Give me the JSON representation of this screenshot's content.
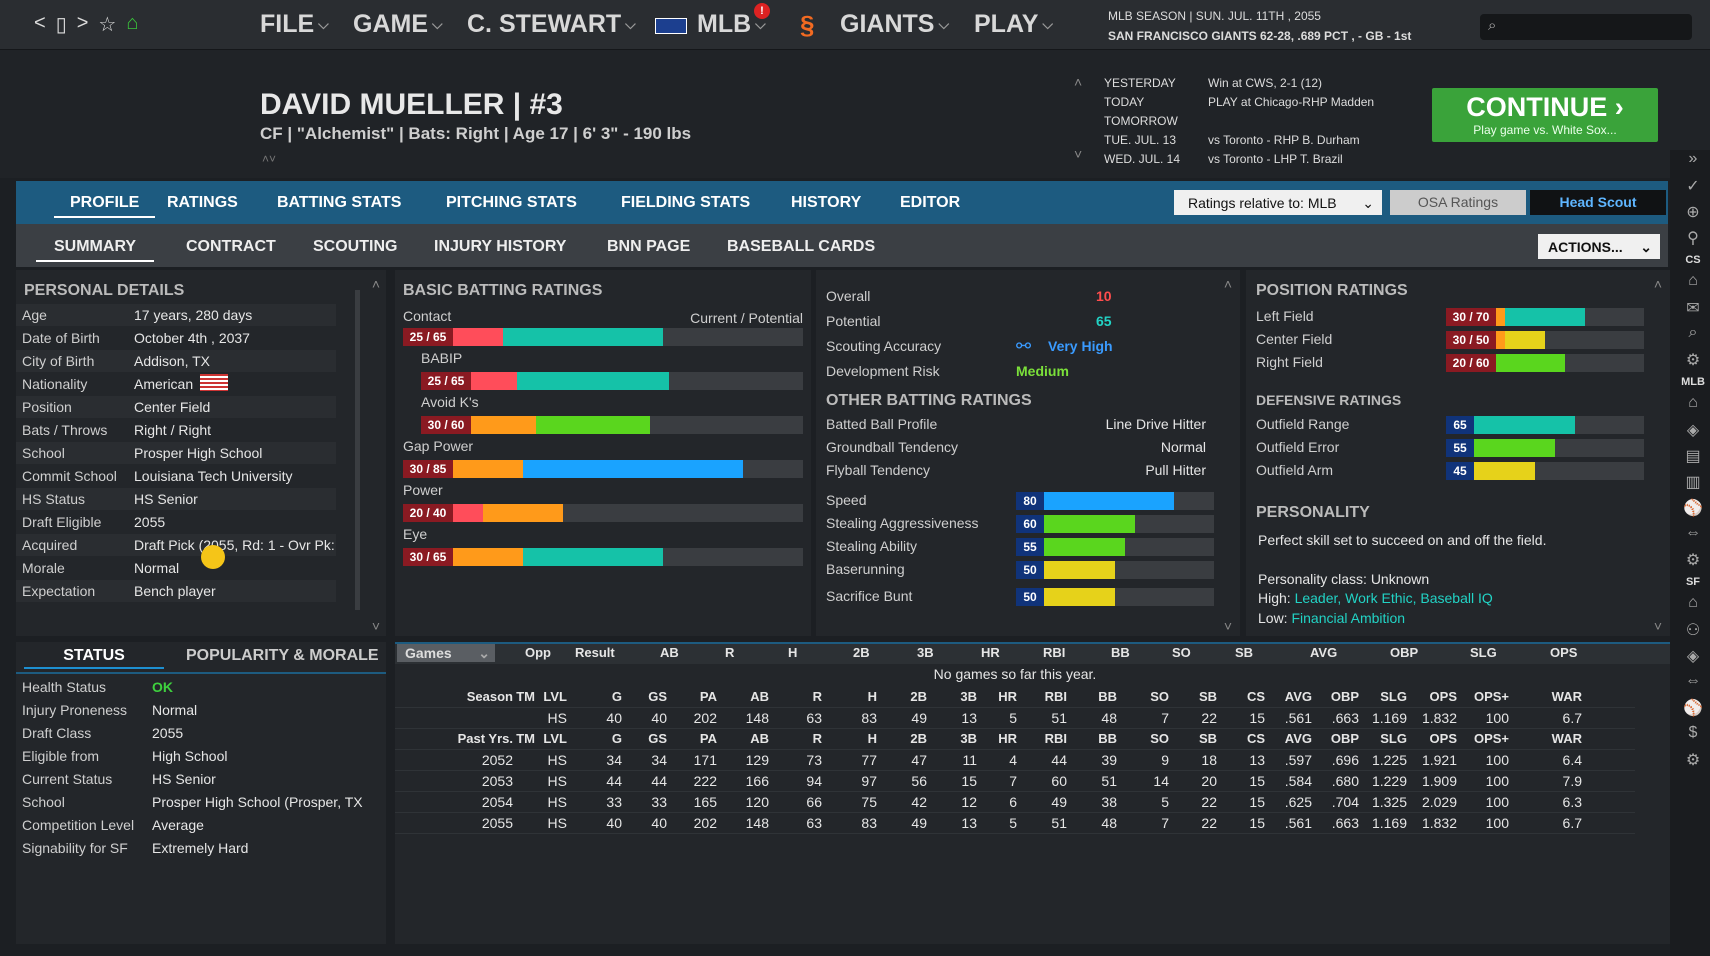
{
  "nav": {
    "back": "<",
    "forward": ">",
    "window": "▯",
    "star": "☆",
    "home": "⌂"
  },
  "menu": [
    "FILE",
    "GAME",
    "C. STEWART",
    "MLB",
    "GIANTS",
    "PLAY"
  ],
  "alert_badge": "!",
  "season": {
    "line1": "MLB SEASON  |  SUN. JUL. 11TH , 2055",
    "line2": "SAN FRANCISCO GIANTS  62-28, .689 PCT , - GB - 1st"
  },
  "player": {
    "name": "DAVID MUELLER  |  #3",
    "info": "CF | \"Alchemist\" | Bats: Right  |  Age 17  |  6' 3\"  - 190 lbs"
  },
  "schedule": [
    {
      "day": "YESTERDAY",
      "game": "Win at CWS, 2-1 (12)"
    },
    {
      "day": "TODAY",
      "game": "PLAY at Chicago-RHP Madden"
    },
    {
      "day": "TOMORROW",
      "game": ""
    },
    {
      "day": "TUE. JUL. 13",
      "game": "vs Toronto - RHP B. Durham"
    },
    {
      "day": "WED. JUL. 14",
      "game": "vs Toronto - LHP T. Brazil"
    }
  ],
  "continue": {
    "label": "CONTINUE",
    "sub": "Play game vs. White Sox..."
  },
  "tabs1": [
    "PROFILE",
    "RATINGS",
    "BATTING STATS",
    "PITCHING STATS",
    "FIELDING STATS",
    "HISTORY",
    "EDITOR"
  ],
  "ratings_relative": "Ratings relative to: MLB",
  "osa": "OSA Ratings",
  "head_scout": "Head Scout",
  "tabs2": [
    "SUMMARY",
    "CONTRACT",
    "SCOUTING",
    "INJURY HISTORY",
    "BNN PAGE",
    "BASEBALL CARDS"
  ],
  "actions": "ACTIONS...",
  "personal": {
    "title": "PERSONAL DETAILS",
    "rows": [
      [
        "Age",
        "17 years, 280 days"
      ],
      [
        "Date of Birth",
        "October 4th , 2037"
      ],
      [
        "City of Birth",
        "Addison, TX"
      ],
      [
        "Nationality",
        "American"
      ],
      [
        "Position",
        "Center Field"
      ],
      [
        "Bats / Throws",
        "Right / Right"
      ],
      [
        "School",
        "Prosper High School"
      ],
      [
        "Commit School",
        "Louisiana Tech University"
      ],
      [
        "HS Status",
        "HS Senior"
      ],
      [
        "Draft Eligible",
        "2055"
      ],
      [
        "Acquired",
        "Draft Pick (2055, Rd: 1 - Ovr Pk:"
      ],
      [
        "Morale",
        "Normal"
      ],
      [
        "Expectation",
        "Bench player"
      ]
    ]
  },
  "status": {
    "tab1": "STATUS",
    "tab2": "POPULARITY & MORALE",
    "rows": [
      [
        "Health Status",
        "OK"
      ],
      [
        "Injury Proneness",
        "Normal"
      ],
      [
        "Draft Class",
        "2055"
      ],
      [
        "Eligible from",
        "High School"
      ],
      [
        "Current Status",
        "HS Senior"
      ],
      [
        "School",
        "Prosper High School (Prosper, TX"
      ],
      [
        "Competition Level",
        "Average"
      ],
      [
        "Signability for SF",
        "Extremely Hard"
      ]
    ]
  },
  "batting": {
    "title": "BASIC BATTING RATINGS",
    "cp": "Current / Potential",
    "items": [
      {
        "name": "Contact",
        "label": "25 / 65",
        "cur": 25,
        "pot": 65
      },
      {
        "name": "BABIP",
        "label": "25 / 65",
        "cur": 25,
        "pot": 65
      },
      {
        "name": "Avoid K's",
        "label": "30 / 60",
        "cur": 30,
        "pot": 60
      },
      {
        "name": "Gap Power",
        "label": "30 / 85",
        "cur": 30,
        "pot": 85
      },
      {
        "name": "Power",
        "label": "20 / 40",
        "cur": 20,
        "pot": 40
      },
      {
        "name": "Eye",
        "label": "30 / 65",
        "cur": 30,
        "pot": 65
      }
    ]
  },
  "overall": {
    "rows": [
      [
        "Overall",
        "10"
      ],
      [
        "Potential",
        "65"
      ],
      [
        "Scouting Accuracy",
        "Very High"
      ],
      [
        "Development Risk",
        "Medium"
      ]
    ],
    "other_title": "OTHER BATTING RATINGS",
    "other": [
      [
        "Batted Ball Profile",
        "Line Drive Hitter"
      ],
      [
        "Groundball Tendency",
        "Normal"
      ],
      [
        "Flyball Tendency",
        "Pull Hitter"
      ]
    ],
    "running": [
      {
        "name": "Speed",
        "value": 80
      },
      {
        "name": "Stealing Aggressiveness",
        "value": 60
      },
      {
        "name": "Stealing Ability",
        "value": 55
      },
      {
        "name": "Baserunning",
        "value": 50
      },
      {
        "name": "Sacrifice Bunt",
        "value": 50
      }
    ]
  },
  "position": {
    "title": "POSITION RATINGS",
    "items": [
      {
        "name": "Left Field",
        "label": "30 / 70",
        "cur": 30,
        "pot": 70
      },
      {
        "name": "Center Field",
        "label": "30 / 50",
        "cur": 30,
        "pot": 50
      },
      {
        "name": "Right Field",
        "label": "20 / 60",
        "cur": 20,
        "pot": 60
      }
    ],
    "def_title": "DEFENSIVE RATINGS",
    "def": [
      {
        "name": "Outfield Range",
        "value": 65
      },
      {
        "name": "Outfield Error",
        "value": 55
      },
      {
        "name": "Outfield Arm",
        "value": 45
      }
    ],
    "pers_title": "PERSONALITY",
    "pers_text": "Perfect skill set to succeed on and off the field.",
    "pers_class": "Personality class: Unknown",
    "high_label": "High:",
    "high": "Leader, Work Ethic, Baseball IQ",
    "low_label": "Low:",
    "low": "Financial Ambition"
  },
  "games": {
    "select": "Games",
    "headers": [
      "Opp",
      "Result",
      "AB",
      "R",
      "H",
      "2B",
      "3B",
      "HR",
      "RBI",
      "BB",
      "SO",
      "SB",
      "AVG",
      "OBP",
      "SLG",
      "OPS"
    ],
    "empty": "No games so far this year."
  },
  "season_stats": {
    "headers": [
      "Season",
      "TM",
      "LVL",
      "G",
      "GS",
      "PA",
      "AB",
      "R",
      "H",
      "2B",
      "3B",
      "HR",
      "RBI",
      "BB",
      "SO",
      "SB",
      "CS",
      "AVG",
      "OBP",
      "SLG",
      "OPS",
      "OPS+",
      "WAR"
    ],
    "rows": [
      [
        "",
        "",
        "HS",
        "40",
        "40",
        "202",
        "148",
        "63",
        "83",
        "49",
        "13",
        "5",
        "51",
        "48",
        "7",
        "22",
        "15",
        ".561",
        ".663",
        "1.169",
        "1.832",
        "100",
        "6.7"
      ]
    ]
  },
  "past_stats": {
    "headers": [
      "Past Yrs.",
      "TM",
      "LVL",
      "G",
      "GS",
      "PA",
      "AB",
      "R",
      "H",
      "2B",
      "3B",
      "HR",
      "RBI",
      "BB",
      "SO",
      "SB",
      "CS",
      "AVG",
      "OBP",
      "SLG",
      "OPS",
      "OPS+",
      "WAR"
    ],
    "rows": [
      [
        "2052",
        "",
        "HS",
        "34",
        "34",
        "171",
        "129",
        "73",
        "77",
        "47",
        "11",
        "4",
        "44",
        "39",
        "9",
        "18",
        "13",
        ".597",
        ".696",
        "1.225",
        "1.921",
        "100",
        "6.4"
      ],
      [
        "2053",
        "",
        "HS",
        "44",
        "44",
        "222",
        "166",
        "94",
        "97",
        "56",
        "15",
        "7",
        "60",
        "51",
        "14",
        "20",
        "15",
        ".584",
        ".680",
        "1.229",
        "1.909",
        "100",
        "7.9"
      ],
      [
        "2054",
        "",
        "HS",
        "33",
        "33",
        "165",
        "120",
        "66",
        "75",
        "42",
        "12",
        "6",
        "49",
        "38",
        "5",
        "22",
        "15",
        ".625",
        ".704",
        "1.325",
        "2.029",
        "100",
        "6.3"
      ],
      [
        "2055",
        "",
        "HS",
        "40",
        "40",
        "202",
        "148",
        "63",
        "83",
        "49",
        "13",
        "5",
        "51",
        "48",
        "7",
        "22",
        "15",
        ".561",
        ".663",
        "1.169",
        "1.832",
        "100",
        "6.7"
      ]
    ]
  },
  "side_labels": [
    "CS",
    "MLB",
    "SF"
  ],
  "colors": {
    "accent": "#1d5b80",
    "green": "#3aa33a",
    "cyan": "#22d3c5"
  }
}
